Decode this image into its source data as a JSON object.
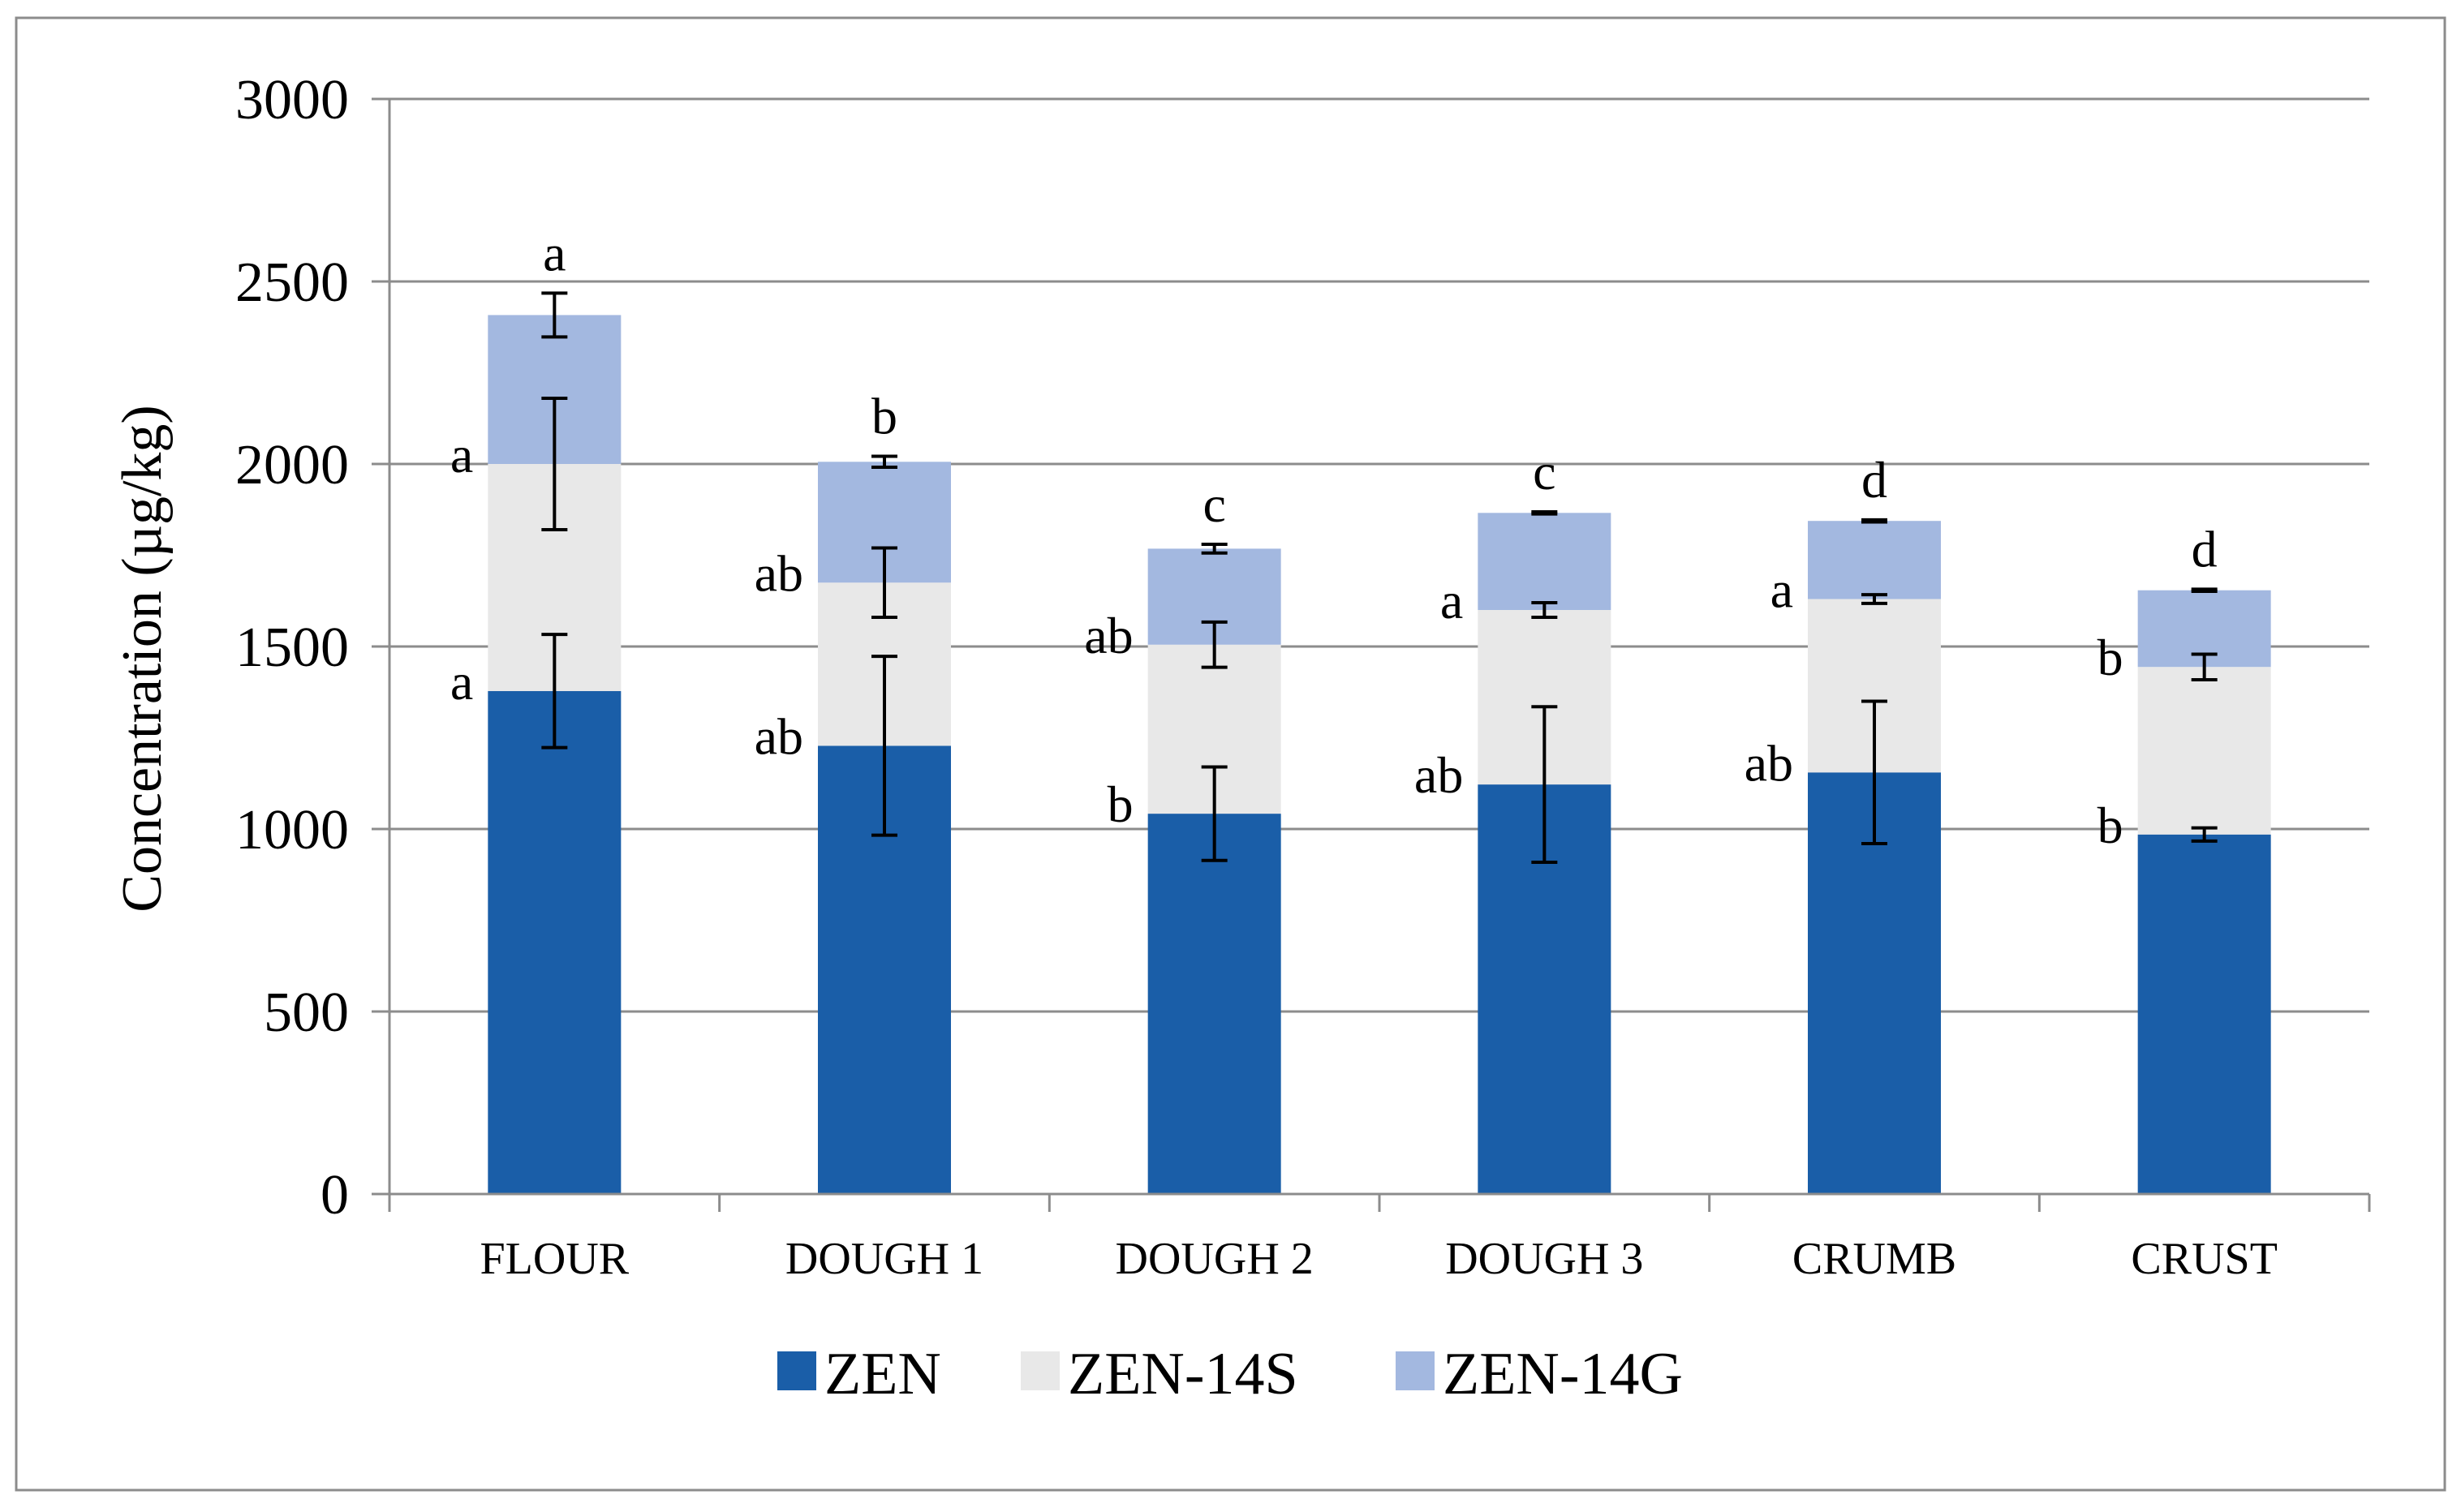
{
  "chart_data": {
    "type": "bar",
    "stacked": true,
    "title": "",
    "xlabel": "",
    "ylabel": "Concentration (µg/kg)",
    "ylim": [
      0,
      3000
    ],
    "yticks": [
      0,
      500,
      1000,
      1500,
      2000,
      2500,
      3000
    ],
    "grid": true,
    "legend_position": "bottom",
    "categories": [
      "FLOUR",
      "DOUGH 1",
      "DOUGH 2",
      "DOUGH 3",
      "CRUMB",
      "CRUST"
    ],
    "series": [
      {
        "name": "ZEN",
        "color": "#1a5ea8",
        "values": [
          1378,
          1228,
          1042,
          1122,
          1155,
          985
        ],
        "errors": [
          155,
          245,
          128,
          213,
          195,
          18
        ],
        "letters": [
          "a",
          "ab",
          "b",
          "ab",
          "ab",
          "b"
        ]
      },
      {
        "name": "ZEN-14S",
        "color": "#e8e8e8",
        "values": [
          622,
          447,
          463,
          478,
          475,
          459
        ],
        "errors": [
          180,
          95,
          62,
          20,
          12,
          35
        ],
        "letters": [
          "a",
          "ab",
          "ab",
          "a",
          "a",
          "b"
        ]
      },
      {
        "name": "ZEN-14G",
        "color": "#a3b8e0",
        "values": [
          408,
          331,
          263,
          266,
          214,
          210
        ],
        "errors": [
          60,
          15,
          12,
          3,
          3,
          3
        ],
        "letters": [
          "a",
          "b",
          "c",
          "c",
          "d",
          "d"
        ]
      }
    ]
  }
}
